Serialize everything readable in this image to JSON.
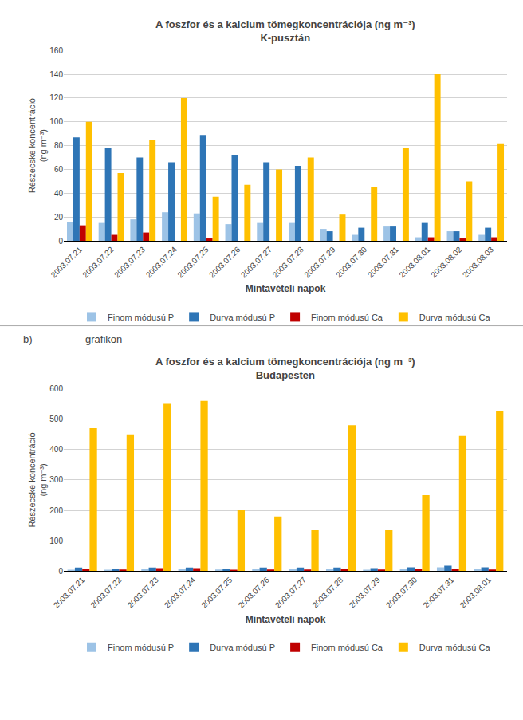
{
  "chart_data": [
    {
      "type": "bar",
      "title": "A foszfor és a kalcium tömegkoncentrációja (ng m⁻³)",
      "subtitle": "K-pusztán",
      "xlabel": "Mintavételi napok",
      "ylabel": "Részecske koncentráció\n(ng m⁻³)",
      "categories": [
        "2003.07.21",
        "2003.07.22",
        "2003.07.23",
        "2003.07.24",
        "2003.07.25",
        "2003.07.26",
        "2003.07.27",
        "2003.07.28",
        "2003.07.29",
        "2003.07.30",
        "2003.07.31",
        "2003.08.01",
        "2003.08.02",
        "2003.08.03"
      ],
      "series": [
        {
          "name": "Finom módusú P",
          "color": "#9dc3e6",
          "values": [
            16,
            15,
            18,
            24,
            23,
            14,
            15,
            15,
            10,
            5,
            12,
            3,
            8,
            5
          ]
        },
        {
          "name": "Durva módusú P",
          "color": "#2e75b6",
          "values": [
            87,
            78,
            70,
            66,
            89,
            72,
            66,
            63,
            8,
            11,
            12,
            15,
            8,
            11
          ]
        },
        {
          "name": "Finom módusú Ca",
          "color": "#c00000",
          "values": [
            13,
            5,
            7,
            0,
            2,
            0,
            0,
            0,
            0,
            0,
            0,
            3,
            2,
            3
          ]
        },
        {
          "name": "Durva módusú Ca",
          "color": "#ffc000",
          "values": [
            100,
            57,
            85,
            120,
            37,
            47,
            60,
            70,
            22,
            45,
            78,
            140,
            50,
            82
          ]
        }
      ],
      "ylim": [
        0,
        160
      ],
      "yticks": [
        0,
        20,
        40,
        60,
        80,
        100,
        120,
        140,
        160
      ],
      "grid": true,
      "legend": "bottom"
    },
    {
      "type": "bar",
      "title": "A foszfor és a kalcium tömegkoncentrációja (ng m⁻³)",
      "subtitle": "Budapesten",
      "xlabel": "Mintavételi napok",
      "ylabel": "Részecske koncentráció\n(ng m⁻³)",
      "annotations": [
        "b)",
        "grafikon"
      ],
      "categories": [
        "2003.07.21",
        "2003.07.22",
        "2003.07.23",
        "2003.07.24",
        "2003.07.25",
        "2003.07.26",
        "2003.07.27",
        "2003.07.28",
        "2003.07.29",
        "2003.07.30",
        "2003.07.31",
        "2003.08.01"
      ],
      "series": [
        {
          "name": "Finom módusú P",
          "color": "#9dc3e6",
          "values": [
            5,
            4,
            8,
            8,
            6,
            8,
            8,
            8,
            5,
            8,
            13,
            8
          ]
        },
        {
          "name": "Durva módusú P",
          "color": "#2e75b6",
          "values": [
            12,
            9,
            12,
            12,
            8,
            12,
            12,
            12,
            10,
            13,
            18,
            13
          ]
        },
        {
          "name": "Finom módusú Ca",
          "color": "#c00000",
          "values": [
            8,
            6,
            10,
            10,
            5,
            6,
            6,
            8,
            6,
            7,
            8,
            6
          ]
        },
        {
          "name": "Durva módusú Ca",
          "color": "#ffc000",
          "values": [
            470,
            450,
            550,
            560,
            200,
            180,
            135,
            480,
            135,
            250,
            445,
            525
          ]
        }
      ],
      "ylim": [
        0,
        600
      ],
      "yticks": [
        0,
        100,
        200,
        300,
        400,
        500,
        600
      ],
      "grid": true,
      "legend": "bottom"
    }
  ]
}
